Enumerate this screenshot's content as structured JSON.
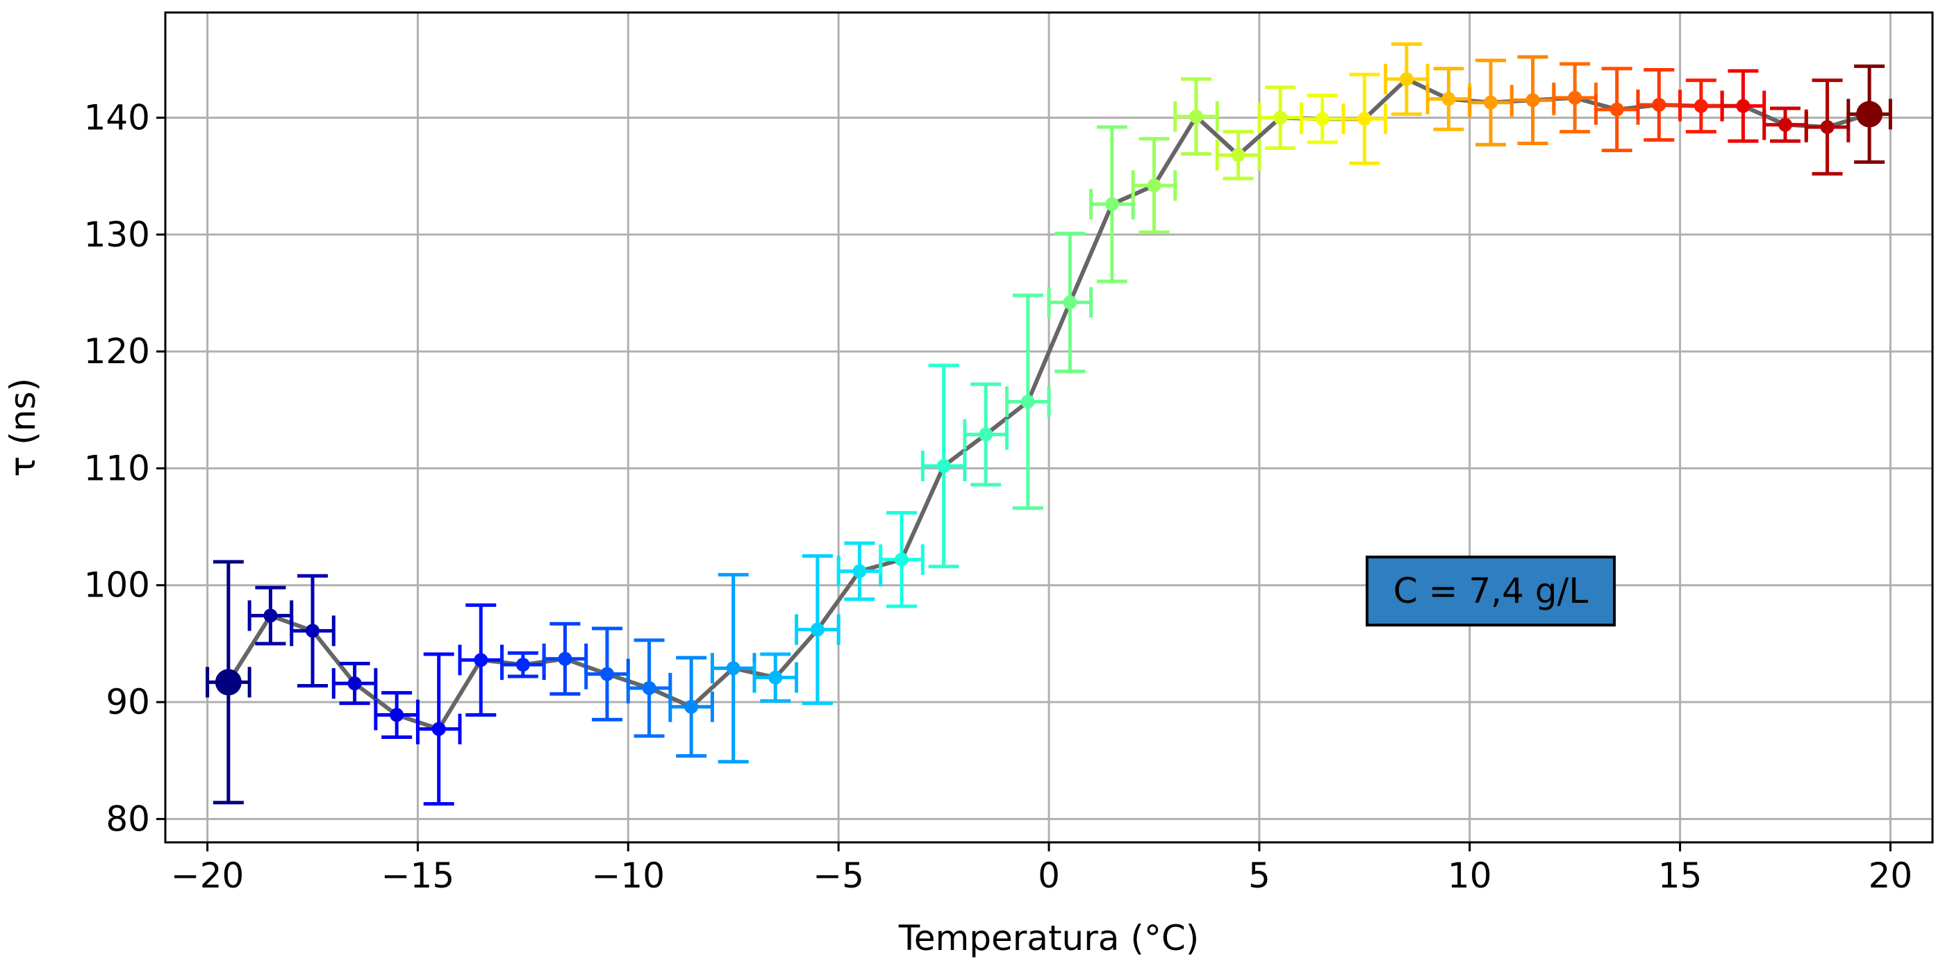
{
  "chart_data": {
    "type": "scatter",
    "xlabel": "Temperatura (°C)",
    "ylabel": "τ (ns)",
    "xlim": [
      -21,
      21
    ],
    "ylim": [
      78,
      149
    ],
    "xticks": [
      -20,
      -15,
      -10,
      -5,
      0,
      5,
      10,
      15,
      20
    ],
    "xtick_labels": [
      "−20",
      "−15",
      "−10",
      "−5",
      "0",
      "5",
      "10",
      "15",
      "20"
    ],
    "yticks": [
      80,
      90,
      100,
      110,
      120,
      130,
      140
    ],
    "ytick_labels": [
      "80",
      "90",
      "100",
      "110",
      "120",
      "130",
      "140"
    ],
    "grid": true,
    "line_color": "#666666",
    "colormap": "jet",
    "annotation": {
      "text": "C = 7,4 g/L",
      "x": 10.5,
      "y": 99.5,
      "facecolor": "#2f7ebf"
    },
    "xerr": 0.5,
    "points": [
      {
        "x": -19.5,
        "y": 91.7,
        "yerr": 10.3,
        "color": "#000080"
      },
      {
        "x": -18.5,
        "y": 97.4,
        "yerr": 2.4,
        "color": "#00009c"
      },
      {
        "x": -17.5,
        "y": 96.1,
        "yerr": 4.7,
        "color": "#0000b8"
      },
      {
        "x": -16.5,
        "y": 91.6,
        "yerr": 1.7,
        "color": "#0000d4"
      },
      {
        "x": -15.5,
        "y": 88.9,
        "yerr": 1.9,
        "color": "#0000f0"
      },
      {
        "x": -14.5,
        "y": 87.7,
        "yerr": 6.4,
        "color": "#0000ff"
      },
      {
        "x": -13.5,
        "y": 93.6,
        "yerr": 4.7,
        "color": "#0010ff"
      },
      {
        "x": -12.5,
        "y": 93.2,
        "yerr": 1.0,
        "color": "#0028ff"
      },
      {
        "x": -11.5,
        "y": 93.7,
        "yerr": 3.0,
        "color": "#0040ff"
      },
      {
        "x": -10.5,
        "y": 92.4,
        "yerr": 3.9,
        "color": "#0058ff"
      },
      {
        "x": -9.5,
        "y": 91.2,
        "yerr": 4.1,
        "color": "#0070ff"
      },
      {
        "x": -8.5,
        "y": 89.6,
        "yerr": 4.2,
        "color": "#0088ff"
      },
      {
        "x": -7.5,
        "y": 92.9,
        "yerr": 8.0,
        "color": "#00a0ff"
      },
      {
        "x": -6.5,
        "y": 92.1,
        "yerr": 2.0,
        "color": "#00b8ff"
      },
      {
        "x": -5.5,
        "y": 96.2,
        "yerr": 6.3,
        "color": "#00d0ff"
      },
      {
        "x": -4.5,
        "y": 101.2,
        "yerr": 2.4,
        "color": "#00e4f8"
      },
      {
        "x": -3.5,
        "y": 102.2,
        "yerr": 4.0,
        "color": "#14ffe2"
      },
      {
        "x": -2.5,
        "y": 110.2,
        "yerr": 8.6,
        "color": "#2affcd"
      },
      {
        "x": -1.5,
        "y": 112.9,
        "yerr": 4.3,
        "color": "#40ffb7"
      },
      {
        "x": -0.5,
        "y": 115.7,
        "yerr": 9.1,
        "color": "#56ffa1"
      },
      {
        "x": 0.5,
        "y": 124.2,
        "yerr": 5.9,
        "color": "#6cff8a"
      },
      {
        "x": 1.5,
        "y": 132.6,
        "yerr": 6.6,
        "color": "#82ff74"
      },
      {
        "x": 2.5,
        "y": 134.2,
        "yerr": 4.0,
        "color": "#98ff5e"
      },
      {
        "x": 3.5,
        "y": 140.1,
        "yerr": 3.2,
        "color": "#aeff48"
      },
      {
        "x": 4.5,
        "y": 136.8,
        "yerr": 2.0,
        "color": "#c4ff32"
      },
      {
        "x": 5.5,
        "y": 140.0,
        "yerr": 2.6,
        "color": "#daff1c"
      },
      {
        "x": 6.5,
        "y": 139.9,
        "yerr": 2.0,
        "color": "#f0ff06"
      },
      {
        "x": 7.5,
        "y": 139.9,
        "yerr": 3.8,
        "color": "#ffea00"
      },
      {
        "x": 8.5,
        "y": 143.3,
        "yerr": 3.0,
        "color": "#ffd000"
      },
      {
        "x": 9.5,
        "y": 141.6,
        "yerr": 2.6,
        "color": "#ffb700"
      },
      {
        "x": 10.5,
        "y": 141.3,
        "yerr": 3.6,
        "color": "#ff9e00"
      },
      {
        "x": 11.5,
        "y": 141.5,
        "yerr": 3.7,
        "color": "#ff8400"
      },
      {
        "x": 12.5,
        "y": 141.7,
        "yerr": 2.9,
        "color": "#ff6a00"
      },
      {
        "x": 13.5,
        "y": 140.7,
        "yerr": 3.5,
        "color": "#ff5000"
      },
      {
        "x": 14.5,
        "y": 141.1,
        "yerr": 3.0,
        "color": "#ff3600"
      },
      {
        "x": 15.5,
        "y": 141.0,
        "yerr": 2.2,
        "color": "#ff1c00"
      },
      {
        "x": 16.5,
        "y": 141.0,
        "yerr": 3.0,
        "color": "#f00000"
      },
      {
        "x": 17.5,
        "y": 139.4,
        "yerr": 1.4,
        "color": "#d00000"
      },
      {
        "x": 18.5,
        "y": 139.2,
        "yerr": 4.0,
        "color": "#b00000"
      },
      {
        "x": 19.5,
        "y": 140.3,
        "yerr": 4.1,
        "color": "#800000"
      }
    ]
  }
}
